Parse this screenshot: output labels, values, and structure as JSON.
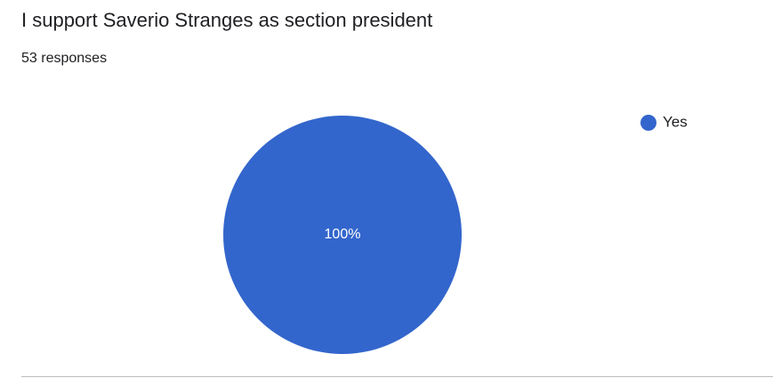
{
  "chart_data": {
    "type": "pie",
    "title": "I support Saverio Stranges as section president",
    "subtitle": "53 responses",
    "categories": [
      "Yes"
    ],
    "values": [
      100
    ],
    "value_labels": [
      "100%"
    ],
    "colors": [
      "#3366cc"
    ],
    "legend": "top-right"
  }
}
